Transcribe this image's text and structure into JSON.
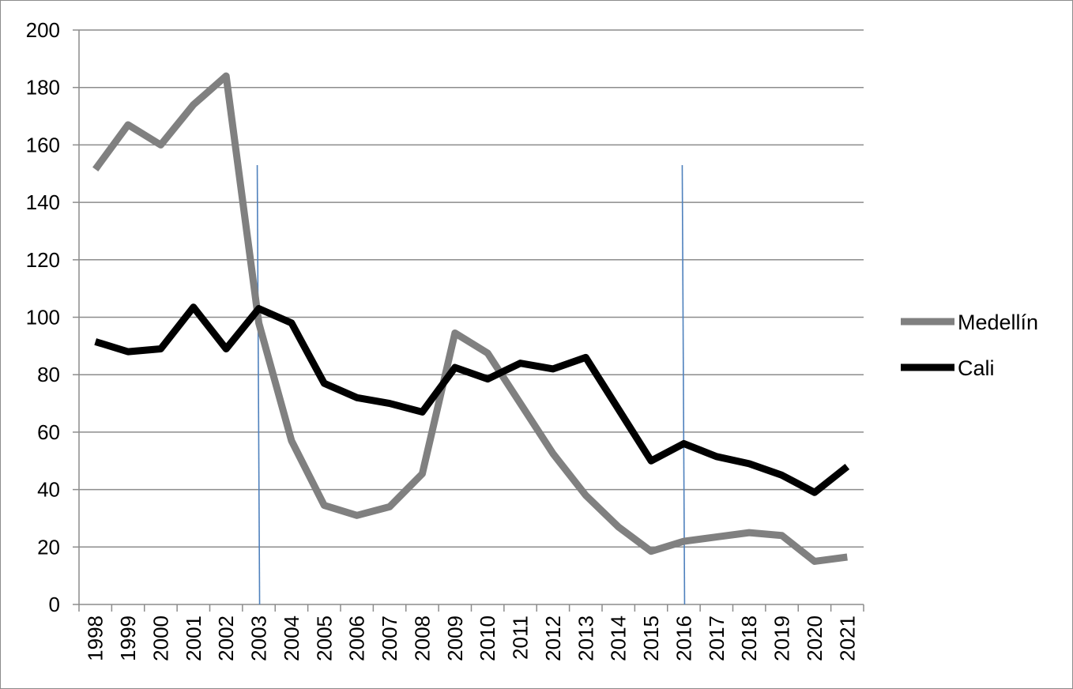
{
  "chart_data": {
    "type": "line",
    "title": "",
    "xlabel": "",
    "ylabel": "",
    "categories": [
      "1998",
      "1999",
      "2000",
      "2001",
      "2002",
      "2003",
      "2004",
      "2005",
      "2006",
      "2007",
      "2008",
      "2009",
      "2010",
      "2011",
      "2012",
      "2013",
      "2014",
      "2015",
      "2016",
      "2017",
      "2018",
      "2019",
      "2020",
      "2021"
    ],
    "ylim": [
      0,
      200
    ],
    "yticks": [
      "0",
      "20",
      "40",
      "60",
      "80",
      "100",
      "120",
      "140",
      "160",
      "180",
      "200"
    ],
    "grid": true,
    "legend_position": "right",
    "series": [
      {
        "name": "Medellín",
        "color": "#808080",
        "values": [
          151.5,
          167,
          160,
          174,
          184,
          98,
          57,
          34.5,
          31,
          34,
          45.5,
          94.5,
          87.5,
          70,
          52.5,
          38,
          27,
          18.5,
          22,
          23.5,
          25,
          24,
          15,
          16.5
        ]
      },
      {
        "name": "Cali",
        "color": "#000000",
        "values": [
          91.5,
          88,
          89,
          103.5,
          89,
          103,
          98,
          77,
          72,
          70,
          67,
          82.5,
          78.5,
          84,
          82,
          86,
          68,
          50,
          56,
          51.5,
          49,
          45,
          39,
          48
        ]
      }
    ],
    "markers": [
      {
        "at": "2003",
        "color": "#4f81bd"
      },
      {
        "at": "2016",
        "color": "#4f81bd"
      }
    ]
  }
}
